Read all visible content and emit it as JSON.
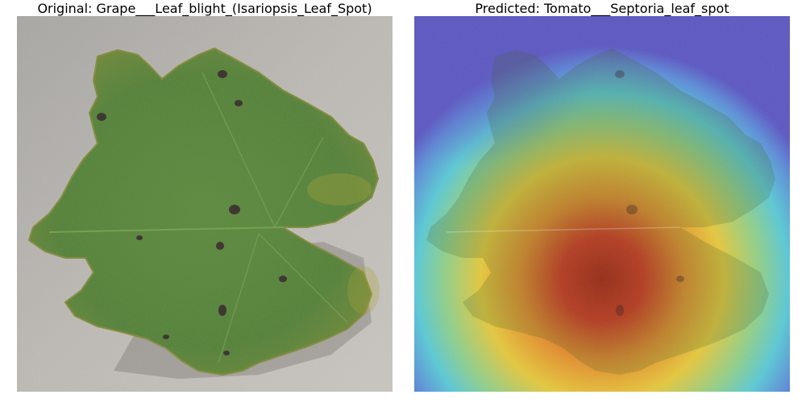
{
  "panels": [
    {
      "title": "Original: Grape___Leaf_blight_(Isariopsis_Leaf_Spot)"
    },
    {
      "title": "Predicted: Tomato___Septoria_leaf_spot"
    }
  ],
  "colors": {
    "background": "#b6b3ae",
    "leaf": "#5b8a3c",
    "leaf_dark": "#3f6a2a",
    "spot": "#3a2a30",
    "heat_hot": "#d4311e",
    "heat_warm": "#e6c83a",
    "heat_cool": "#58c9d6",
    "heat_cold": "#5a55c2"
  },
  "icons": [
    "leaf-image",
    "heatmap-overlay"
  ]
}
